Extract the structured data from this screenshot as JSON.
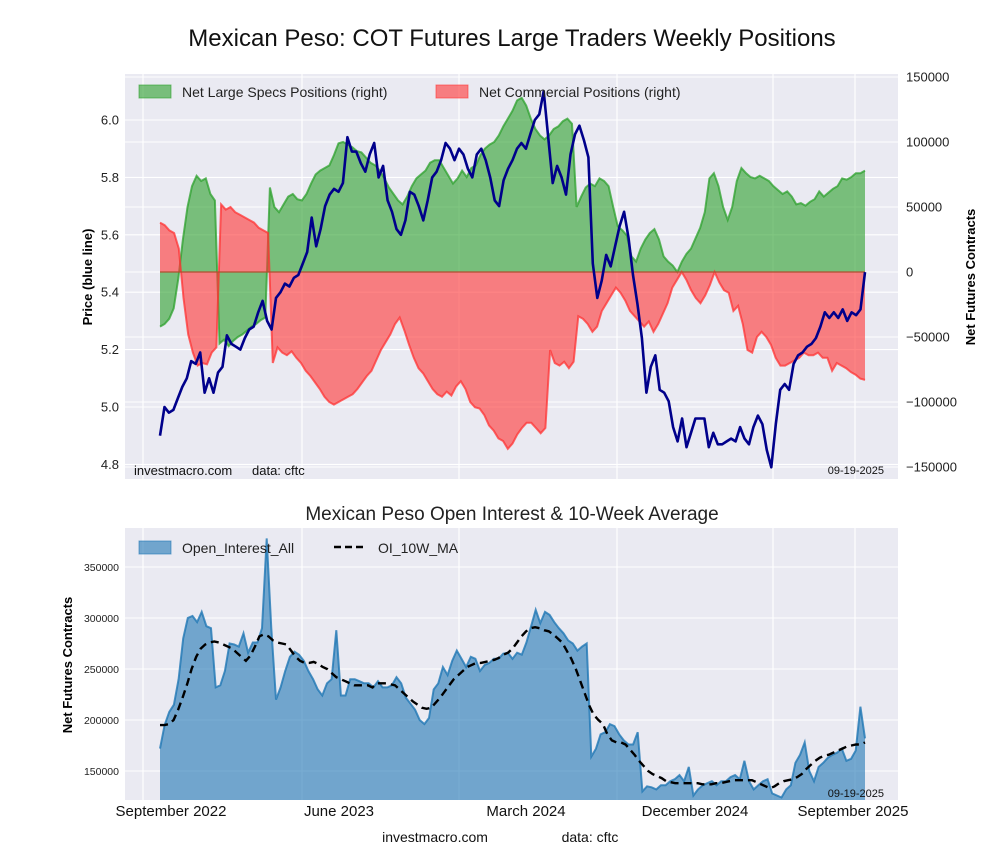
{
  "chart_data": [
    {
      "type": "area",
      "title": "Mexican Peso: COT Futures Large Traders Weekly Positions",
      "ylabel": "Price (blue line)",
      "ylabel_right": "Net Futures Contracts",
      "ylim": [
        4.78,
        6.13
      ],
      "ylim_right": [
        -150000,
        150000
      ],
      "yticks": [
        "4.8",
        "5.0",
        "5.2",
        "5.4",
        "5.6",
        "5.8",
        "6.0"
      ],
      "yticks_right": [
        "-150000",
        "-100000",
        "-50000",
        "0",
        "50000",
        "100000",
        "150000"
      ],
      "grid": true,
      "legend_position": "top-left",
      "legend": [
        "Net Large Specs Positions (right)",
        "Net Commercial Positions (right)"
      ],
      "annotations": {
        "source": "investmacro.com",
        "data": "data: cftc",
        "date": "09-19-2025"
      },
      "x_range_weeks": 158,
      "series": [
        {
          "name": "Net Large Specs Positions (right)",
          "axis": "right",
          "color": "#2ca02c",
          "values": [
            -42000,
            -40000,
            -36000,
            -28000,
            -5000,
            25000,
            50000,
            66000,
            74000,
            70000,
            72000,
            60000,
            55000,
            -55000,
            -52000,
            -57000,
            -53000,
            -50000,
            -48000,
            -45000,
            -42000,
            -40000,
            -37000,
            -35000,
            65000,
            50000,
            46000,
            52000,
            58000,
            60000,
            56000,
            55000,
            60000,
            68000,
            75000,
            78000,
            80000,
            82000,
            90000,
            99000,
            100000,
            98000,
            96000,
            93000,
            92000,
            88000,
            84000,
            82000,
            78000,
            72000,
            65000,
            60000,
            55000,
            52000,
            58000,
            66000,
            72000,
            75000,
            78000,
            84000,
            86000,
            86000,
            80000,
            74000,
            68000,
            72000,
            78000,
            73000,
            80000,
            82000,
            90000,
            95000,
            98000,
            100000,
            105000,
            112000,
            118000,
            124000,
            132000,
            134000,
            128000,
            118000,
            110000,
            105000,
            102000,
            105000,
            110000,
            112000,
            116000,
            118000,
            114000,
            50000,
            58000,
            65000,
            68000,
            66000,
            72000,
            70000,
            66000,
            50000,
            35000,
            32000,
            28000,
            12000,
            8000,
            18000,
            25000,
            30000,
            33000,
            25000,
            12000,
            8000,
            5000,
            0,
            8000,
            14000,
            18000,
            26000,
            34000,
            46000,
            72000,
            76000,
            66000,
            50000,
            40000,
            50000,
            70000,
            80000,
            76000,
            73000,
            72000,
            74000,
            72000,
            70000,
            66000,
            63000,
            60000,
            62000,
            58000,
            52000,
            53000,
            51000,
            54000,
            56000,
            62000,
            58000,
            61000,
            64000,
            66000,
            72000,
            71000,
            73000,
            76000,
            76000,
            78000
          ],
          "fill_alpha": 0.6
        },
        {
          "name": "Net Commercial Positions (right)",
          "axis": "right",
          "color": "#ff3333",
          "values": [
            38000,
            36000,
            32000,
            30000,
            18000,
            -20000,
            -48000,
            -62000,
            -72000,
            -70000,
            -71000,
            -62000,
            -58000,
            52000,
            48000,
            50000,
            46000,
            44000,
            42000,
            40000,
            38000,
            34000,
            32000,
            30000,
            -70000,
            -58000,
            -62000,
            -64000,
            -61000,
            -66000,
            -70000,
            -76000,
            -80000,
            -85000,
            -90000,
            -96000,
            -100000,
            -102000,
            -100000,
            -98000,
            -96000,
            -94000,
            -90000,
            -85000,
            -80000,
            -76000,
            -68000,
            -60000,
            -54000,
            -48000,
            -40000,
            -35000,
            -45000,
            -56000,
            -66000,
            -74000,
            -78000,
            -84000,
            -90000,
            -94000,
            -96000,
            -92000,
            -95000,
            -88000,
            -84000,
            -90000,
            -100000,
            -104000,
            -105000,
            -110000,
            -118000,
            -122000,
            -128000,
            -130000,
            -136000,
            -132000,
            -125000,
            -120000,
            -116000,
            -116000,
            -120000,
            -124000,
            -120000,
            -60000,
            -70000,
            -72000,
            -69000,
            -74000,
            -69000,
            -34000,
            -36000,
            -40000,
            -46000,
            -42000,
            -30000,
            -24000,
            -18000,
            -12000,
            -16000,
            -22000,
            -30000,
            -34000,
            -38000,
            -42000,
            -38000,
            -46000,
            -40000,
            -32000,
            -24000,
            -12000,
            -6000,
            0,
            -6000,
            -14000,
            -20000,
            -24000,
            -18000,
            -10000,
            0,
            -8000,
            -14000,
            -16000,
            -30000,
            -26000,
            -40000,
            -60000,
            -62000,
            -50000,
            -46000,
            -50000,
            -56000,
            -66000,
            -72000,
            -72000,
            -70000,
            -68000,
            -66000,
            -62000,
            -64000,
            -64000,
            -62000,
            -66000,
            -66000,
            -76000,
            -70000,
            -72000,
            -74000,
            -77000,
            -79000,
            -82000,
            -83000
          ],
          "fill_alpha": 0.6
        },
        {
          "name": "Price",
          "axis": "left",
          "color": "#00008b",
          "values": [
            4.9,
            5.0,
            4.98,
            4.99,
            5.03,
            5.07,
            5.1,
            5.16,
            5.15,
            5.19,
            5.05,
            5.1,
            5.05,
            5.12,
            5.14,
            5.25,
            5.22,
            5.21,
            5.2,
            5.24,
            5.27,
            5.28,
            5.33,
            5.37,
            5.3,
            5.27,
            5.38,
            5.4,
            5.43,
            5.42,
            5.45,
            5.46,
            5.5,
            5.54,
            5.66,
            5.56,
            5.62,
            5.7,
            5.74,
            5.76,
            5.75,
            5.78,
            5.94,
            5.89,
            5.89,
            5.85,
            5.82,
            5.88,
            5.92,
            5.8,
            5.84,
            5.72,
            5.68,
            5.62,
            5.6,
            5.65,
            5.75,
            5.74,
            5.7,
            5.65,
            5.72,
            5.8,
            5.82,
            5.86,
            5.92,
            5.9,
            5.86,
            5.9,
            5.88,
            5.83,
            5.8,
            5.88,
            5.9,
            5.86,
            5.8,
            5.72,
            5.7,
            5.79,
            5.83,
            5.86,
            5.9,
            5.92,
            5.9,
            5.95,
            6.0,
            6.02,
            6.1,
            5.94,
            5.78,
            5.84,
            5.8,
            5.74,
            5.88,
            5.95,
            5.98,
            5.93,
            5.87,
            5.5,
            5.38,
            5.44,
            5.53,
            5.49,
            5.56,
            5.63,
            5.68,
            5.59,
            5.46,
            5.36,
            5.24,
            5.05,
            5.14,
            5.18,
            5.06,
            5.05,
            5.02,
            4.93,
            4.88,
            4.96,
            4.86,
            4.91,
            4.96,
            4.96,
            4.96,
            4.86,
            4.91,
            4.87,
            4.87,
            4.88,
            4.89,
            4.88,
            4.93,
            4.89,
            4.87,
            4.93,
            4.97,
            4.94,
            4.85,
            4.79,
            4.94,
            5.06,
            5.08,
            5.06,
            5.15,
            5.18,
            5.19,
            5.21,
            5.22,
            5.24,
            5.28,
            5.33,
            5.31,
            5.33,
            5.31,
            5.34,
            5.3,
            5.33,
            5.32,
            5.34,
            5.47
          ]
        }
      ]
    },
    {
      "type": "area",
      "title": "Mexican Peso Open Interest & 10-Week Average",
      "ylabel": "Net Futures Contracts",
      "xlabel": "",
      "ylim": [
        121500,
        385000
      ],
      "yticks": [
        "150000",
        "200000",
        "250000",
        "300000",
        "350000"
      ],
      "xticks": [
        "September 2022",
        "June 2023",
        "March 2024",
        "December 2024",
        "September 2025"
      ],
      "grid": true,
      "legend_position": "top-left",
      "legend": [
        "Open_Interest_All",
        "OI_10W_MA"
      ],
      "annotations": {
        "date": "09-19-2025"
      },
      "series": [
        {
          "name": "Open_Interest_All",
          "color": "#1f77b4",
          "values": [
            172000,
            195000,
            208000,
            215000,
            240000,
            280000,
            300000,
            302000,
            296000,
            306000,
            292000,
            290000,
            232000,
            234000,
            248000,
            275000,
            274000,
            272000,
            285000,
            266000,
            276000,
            276000,
            290000,
            378000,
            290000,
            220000,
            232000,
            248000,
            262000,
            267000,
            264000,
            258000,
            248000,
            240000,
            230000,
            224000,
            236000,
            240000,
            288000,
            224000,
            224000,
            240000,
            240000,
            238000,
            236000,
            236000,
            232000,
            238000,
            232000,
            232000,
            234000,
            242000,
            236000,
            222000,
            216000,
            210000,
            200000,
            196000,
            202000,
            230000,
            236000,
            252000,
            244000,
            258000,
            268000,
            260000,
            252000,
            262000,
            260000,
            248000,
            254000,
            256000,
            260000,
            260000,
            265000,
            266000,
            260000,
            266000,
            264000,
            276000,
            292000,
            308000,
            295000,
            306000,
            303000,
            296000,
            290000,
            285000,
            278000,
            275000,
            268000,
            272000,
            275000,
            164000,
            172000,
            186000,
            188000,
            196000,
            194000,
            186000,
            180000,
            176000,
            176000,
            188000,
            130000,
            135000,
            134000,
            132000,
            136000,
            136000,
            140000,
            142000,
            146000,
            140000,
            154000,
            126000,
            132000,
            136000,
            138000,
            140000,
            136000,
            140000,
            140000,
            144000,
            146000,
            142000,
            160000,
            140000,
            132000,
            136000,
            140000,
            142000,
            128000,
            126000,
            124000,
            132000,
            136000,
            158000,
            166000,
            178000,
            150000,
            140000,
            154000,
            158000,
            163000,
            166000,
            168000,
            172000,
            160000,
            162000,
            170000,
            213000,
            182000
          ],
          "fill_alpha": 0.6
        },
        {
          "name": "OI_10W_MA",
          "color": "#000000",
          "dashed": true,
          "values": [
            195000,
            195000,
            196000,
            200000,
            210000,
            222000,
            235000,
            250000,
            262000,
            270000,
            274000,
            276000,
            277000,
            276000,
            274000,
            272000,
            270000,
            266000,
            262000,
            258000,
            263000,
            272000,
            282000,
            284000,
            282000,
            278000,
            276000,
            275000,
            274000,
            268000,
            262000,
            258000,
            256000,
            256000,
            257000,
            255000,
            252000,
            250000,
            246000,
            242000,
            240000,
            238000,
            236000,
            234000,
            234000,
            234000,
            234000,
            232000,
            236000,
            236000,
            236000,
            235000,
            234000,
            230000,
            226000,
            222000,
            218000,
            215000,
            212000,
            211000,
            212000,
            217000,
            222000,
            228000,
            234000,
            240000,
            244000,
            248000,
            252000,
            254000,
            256000,
            256000,
            257000,
            258000,
            259000,
            261000,
            264000,
            266000,
            270000,
            276000,
            282000,
            287000,
            290000,
            291000,
            290000,
            288000,
            287000,
            284000,
            280000,
            276000,
            268000,
            260000,
            250000,
            238000,
            226000,
            214000,
            205000,
            200000,
            196000,
            186000,
            180000,
            178000,
            178000,
            176000,
            171000,
            166000,
            160000,
            155000,
            150000,
            147000,
            145000,
            143000,
            140000,
            139000,
            138000,
            138000,
            138000,
            138000,
            138000,
            138000,
            137000,
            137000,
            137000,
            138000,
            138000,
            139000,
            140000,
            141000,
            141000,
            141000,
            141000,
            141000,
            139000,
            137000,
            135000,
            133000,
            135000,
            138000,
            140000,
            141000,
            142000,
            144000,
            147000,
            152000,
            156000,
            160000,
            163000,
            165000,
            166000,
            168000,
            170000,
            172000,
            174000,
            175000,
            176000,
            176000,
            178000
          ],
          "fill_alpha": 0
        }
      ]
    }
  ],
  "footer": {
    "source": "investmacro.com",
    "data": "data: cftc"
  }
}
